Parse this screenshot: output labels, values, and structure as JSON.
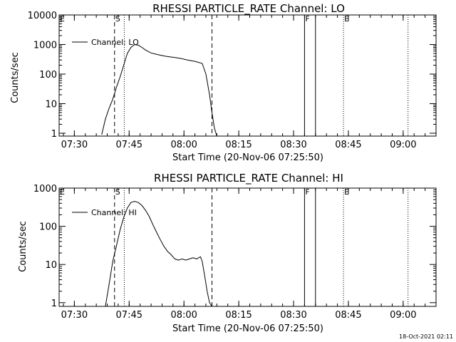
{
  "footer": {
    "timestamp": "18-Oct-2021 02:11"
  },
  "chart_data": [
    {
      "type": "line",
      "title": "RHESSI PARTICLE_RATE Channel: LO",
      "xlabel": "Start Time (20-Nov-06 07:25:50)",
      "ylabel": "Counts/sec",
      "yscale": "log",
      "xlim": [
        "07:25:50",
        "09:09:00"
      ],
      "ylim": [
        0.8,
        10000
      ],
      "xticks": [
        "07:30",
        "07:45",
        "08:00",
        "08:15",
        "08:30",
        "08:45",
        "09:00"
      ],
      "yticks": [
        "1",
        "10",
        "100",
        "1000",
        "10000"
      ],
      "legend": "top-left",
      "markers": [
        {
          "label": "E",
          "time": "07:25:50",
          "style": "dotted"
        },
        {
          "label": "S",
          "time": "07:41:00",
          "style": "dashed"
        },
        {
          "label": "",
          "time": "07:43:40",
          "style": "dotted"
        },
        {
          "label": "",
          "time": "08:07:40",
          "style": "dashed"
        },
        {
          "label": "F",
          "time": "08:33:00",
          "style": "solid"
        },
        {
          "label": "",
          "time": "08:36:00",
          "style": "solid"
        },
        {
          "label": "E",
          "time": "08:43:40",
          "style": "dotted"
        },
        {
          "label": "",
          "time": "09:01:20",
          "style": "dotted"
        }
      ],
      "series": [
        {
          "name": "Channel: LO",
          "x": [
            "07:37:30",
            "07:38:30",
            "07:39:30",
            "07:40:30",
            "07:41:30",
            "07:42:30",
            "07:43:30",
            "07:44:30",
            "07:45:30",
            "07:46:30",
            "07:47:30",
            "07:48:30",
            "07:49:30",
            "07:51:00",
            "07:53:00",
            "07:55:00",
            "07:57:00",
            "07:59:00",
            "08:01:00",
            "08:03:00",
            "08:05:00",
            "08:06:00",
            "08:07:00",
            "08:07:40",
            "08:08:20",
            "08:09:00"
          ],
          "y": [
            0.9,
            3,
            7,
            14,
            35,
            80,
            200,
            500,
            800,
            1000,
            950,
            800,
            650,
            520,
            450,
            400,
            370,
            340,
            300,
            270,
            230,
            100,
            20,
            5,
            1.5,
            0.8
          ]
        }
      ]
    },
    {
      "type": "line",
      "title": "RHESSI PARTICLE_RATE Channel: HI",
      "xlabel": "Start Time (20-Nov-06 07:25:50)",
      "ylabel": "Counts/sec",
      "yscale": "log",
      "xlim": [
        "07:25:50",
        "09:09:00"
      ],
      "ylim": [
        0.8,
        1000
      ],
      "xticks": [
        "07:30",
        "07:45",
        "08:00",
        "08:15",
        "08:30",
        "08:45",
        "09:00"
      ],
      "yticks": [
        "1",
        "10",
        "100",
        "1000"
      ],
      "legend": "top-left",
      "markers": [
        {
          "label": "E",
          "time": "07:25:50",
          "style": "dotted"
        },
        {
          "label": "S",
          "time": "07:41:00",
          "style": "dashed"
        },
        {
          "label": "",
          "time": "07:43:40",
          "style": "dotted"
        },
        {
          "label": "",
          "time": "08:07:40",
          "style": "dashed"
        },
        {
          "label": "F",
          "time": "08:33:00",
          "style": "solid"
        },
        {
          "label": "",
          "time": "08:36:00",
          "style": "solid"
        },
        {
          "label": "E",
          "time": "08:43:40",
          "style": "dotted"
        },
        {
          "label": "",
          "time": "09:01:20",
          "style": "dotted"
        }
      ],
      "series": [
        {
          "name": "Channel: HI",
          "x": [
            "07:38:30",
            "07:39:30",
            "07:40:30",
            "07:41:30",
            "07:42:30",
            "07:43:30",
            "07:44:30",
            "07:45:30",
            "07:46:30",
            "07:47:30",
            "07:48:30",
            "07:49:30",
            "07:50:30",
            "07:51:30",
            "07:52:30",
            "07:53:30",
            "07:54:30",
            "07:55:30",
            "07:56:30",
            "07:57:30",
            "07:58:30",
            "07:59:30",
            "08:00:30",
            "08:01:30",
            "08:02:30",
            "08:03:30",
            "08:04:30",
            "08:05:00",
            "08:05:40",
            "08:06:20",
            "08:07:00",
            "08:07:40"
          ],
          "y": [
            0.8,
            3,
            12,
            30,
            80,
            170,
            300,
            420,
            450,
            420,
            350,
            260,
            180,
            110,
            70,
            45,
            30,
            22,
            18,
            14,
            13,
            14,
            13,
            14,
            15,
            14,
            16,
            12,
            5,
            2,
            1,
            0.8
          ]
        }
      ]
    }
  ]
}
